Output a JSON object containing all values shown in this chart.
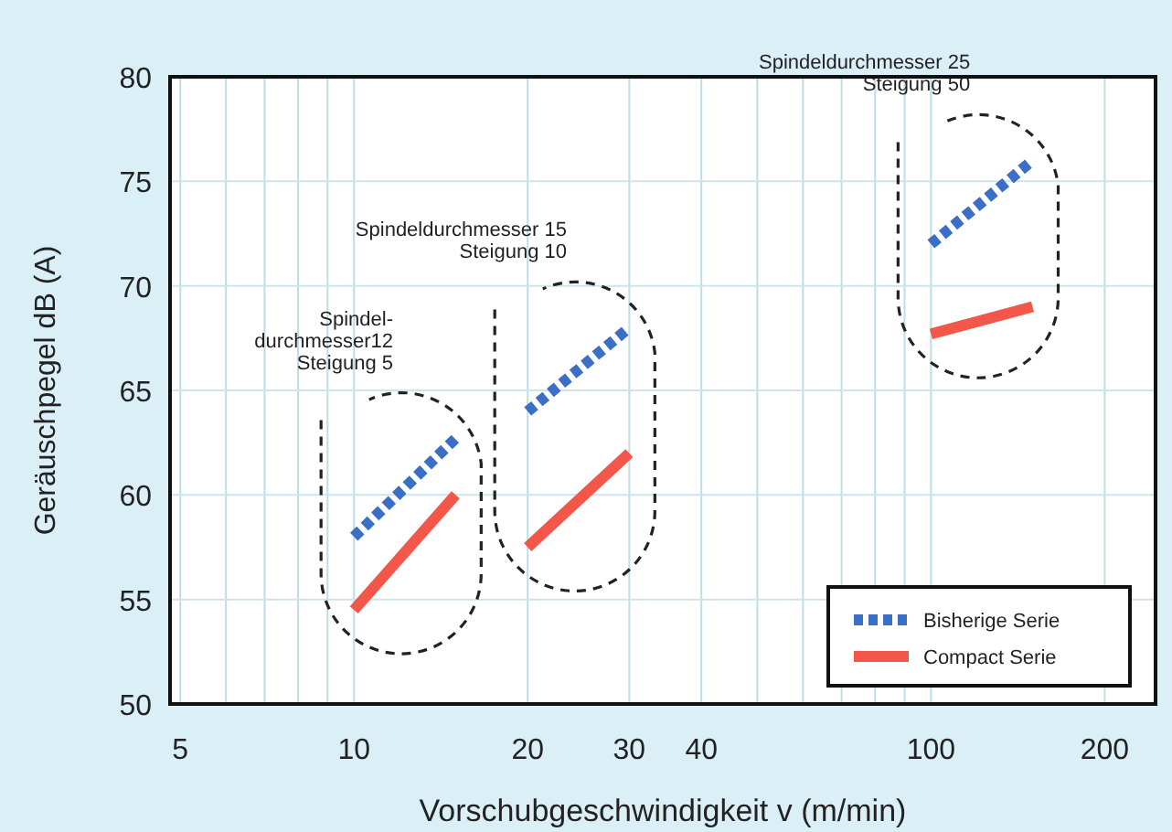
{
  "chart_data": {
    "type": "line",
    "xlabel": "Vorschubgeschwindigkeit v (m/min)",
    "ylabel": "Geräuschpegel dB (A)",
    "log": "x",
    "grid": true,
    "legend": "bottom right",
    "xlim": [
      4.8,
      245
    ],
    "ylim": [
      50,
      80
    ],
    "xticks": [
      5,
      {
        "value": 6,
        "label": null
      },
      {
        "value": 7,
        "label": null
      },
      {
        "value": 8,
        "label": null
      },
      {
        "value": 9,
        "label": null
      },
      10,
      20,
      30,
      40,
      {
        "value": 50,
        "label": null
      },
      {
        "value": 60,
        "label": null
      },
      {
        "value": 70,
        "label": null
      },
      {
        "value": 80,
        "label": null
      },
      {
        "value": 90,
        "label": null
      },
      100,
      200
    ],
    "yticks": [
      50,
      55,
      60,
      65,
      70,
      75,
      80
    ],
    "series": [
      {
        "name": "Bisherige Serie",
        "color": "#3b6fc6",
        "line_style": "dotted",
        "x": [
          10,
          15
        ],
        "values": [
          58,
          62.7
        ]
      },
      {
        "name": "Compact Serie",
        "color": "#f2574a",
        "line_style": "solid",
        "x": [
          10,
          15
        ],
        "values": [
          54.5,
          60
        ]
      },
      {
        "color": "#3b6fc6",
        "line_style": "dotted",
        "x": [
          20,
          30
        ],
        "values": [
          64,
          68
        ]
      },
      {
        "color": "#f2574a",
        "line_style": "solid",
        "x": [
          20,
          30
        ],
        "values": [
          57.5,
          62
        ]
      },
      {
        "color": "#3b6fc6",
        "line_style": "dotted",
        "x": [
          100,
          150
        ],
        "values": [
          72,
          76
        ]
      },
      {
        "color": "#f2574a",
        "line_style": "solid",
        "x": [
          100,
          150
        ],
        "values": [
          67.7,
          69
        ]
      }
    ],
    "annotations": [
      "Spindel-\ndurchmesser12\nSteigung 5",
      "Spindeldurchmesser 15\nSteigung 10",
      "Spindeldurchmesser 25\nSteigung 50"
    ]
  }
}
